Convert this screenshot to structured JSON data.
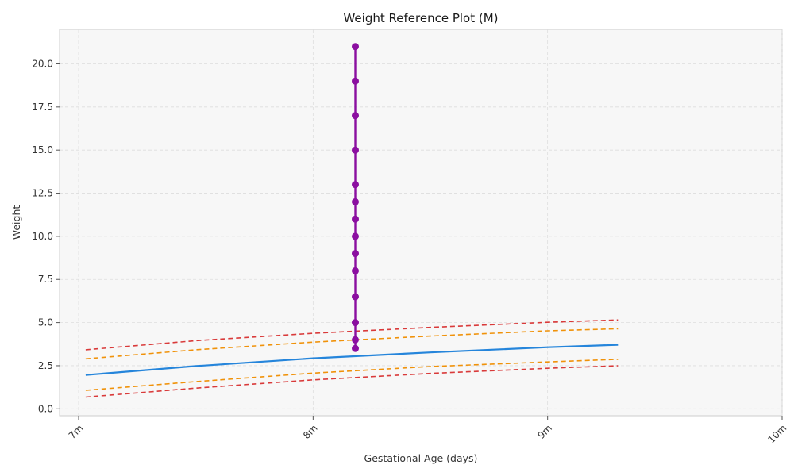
{
  "chart_data": {
    "type": "line",
    "title": "Weight Reference Plot (M)",
    "xlabel": "Gestational Age (days)",
    "ylabel": "Weight",
    "x_ticks": [
      "7m",
      "8m",
      "9m",
      "10m"
    ],
    "y_ticks": [
      "0.0",
      "2.5",
      "5.0",
      "7.5",
      "10.0",
      "12.5",
      "15.0",
      "17.5",
      "20.0"
    ],
    "xlim": [
      7.0,
      10.0
    ],
    "ylim": [
      -0.4,
      22.0
    ],
    "grid": true,
    "reference_x": [
      7.03,
      7.5,
      8.0,
      8.5,
      9.0,
      9.3
    ],
    "series": [
      {
        "color": "#d93a3a",
        "style": "dashed",
        "x": [
          7.03,
          7.5,
          8.0,
          8.5,
          9.0,
          9.3
        ],
        "y": [
          3.42,
          3.95,
          4.38,
          4.72,
          5.02,
          5.15
        ]
      },
      {
        "color": "#f0920a",
        "style": "dashed",
        "x": [
          7.03,
          7.5,
          8.0,
          8.5,
          9.0,
          9.3
        ],
        "y": [
          2.9,
          3.42,
          3.87,
          4.22,
          4.52,
          4.64
        ]
      },
      {
        "color": "#2585db",
        "style": "solid",
        "x": [
          7.03,
          7.5,
          8.0,
          8.5,
          9.0,
          9.3
        ],
        "y": [
          1.96,
          2.48,
          2.93,
          3.27,
          3.57,
          3.71
        ]
      },
      {
        "color": "#f0920a",
        "style": "dashed",
        "x": [
          7.03,
          7.5,
          8.0,
          8.5,
          9.0,
          9.3
        ],
        "y": [
          1.07,
          1.58,
          2.07,
          2.45,
          2.72,
          2.87
        ]
      },
      {
        "color": "#d93a3a",
        "style": "dashed",
        "x": [
          7.03,
          7.5,
          8.0,
          8.5,
          9.0,
          9.3
        ],
        "y": [
          0.68,
          1.2,
          1.68,
          2.05,
          2.35,
          2.5
        ]
      }
    ],
    "measurements": {
      "color": "#8b0fa0",
      "x": [
        8.18,
        8.18,
        8.18,
        8.18,
        8.18,
        8.18,
        8.18,
        8.18,
        8.18,
        8.18,
        8.18,
        8.18,
        8.18,
        8.18
      ],
      "y": [
        3.5,
        4.0,
        5.0,
        6.5,
        8.0,
        9.0,
        10.0,
        11.0,
        12.0,
        13.0,
        15.0,
        17.0,
        19.0,
        21.0
      ]
    }
  }
}
